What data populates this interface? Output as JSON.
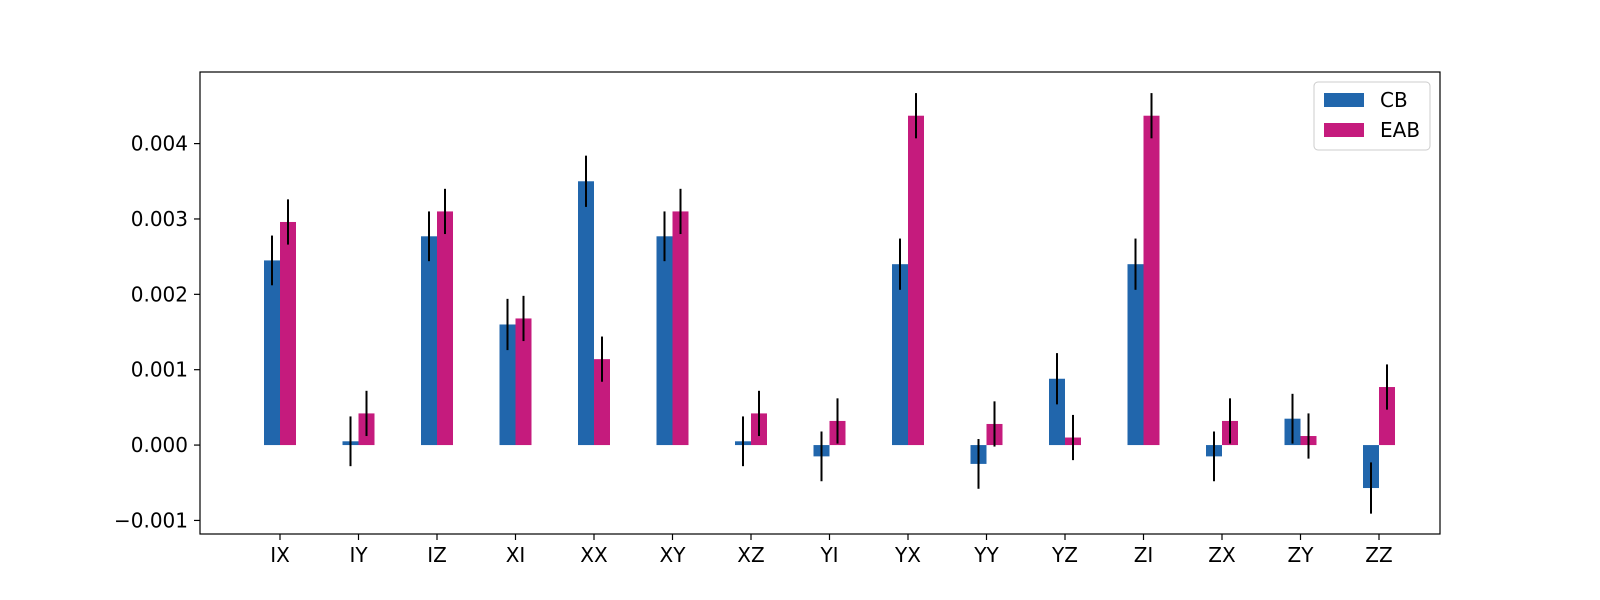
{
  "chart_data": {
    "type": "bar",
    "categories": [
      "IX",
      "IY",
      "IZ",
      "XI",
      "XX",
      "XY",
      "XZ",
      "YI",
      "YX",
      "YY",
      "YZ",
      "ZI",
      "ZX",
      "ZY",
      "ZZ"
    ],
    "series": [
      {
        "name": "CB",
        "color": "#2166ac",
        "values": [
          0.00245,
          5e-05,
          0.00277,
          0.0016,
          0.0035,
          0.00277,
          5e-05,
          -0.00015,
          0.0024,
          -0.00025,
          0.00088,
          0.0024,
          -0.00015,
          0.00035,
          -0.00057
        ],
        "errors": [
          0.00033,
          0.00033,
          0.00033,
          0.00034,
          0.00034,
          0.00033,
          0.00033,
          0.00033,
          0.00034,
          0.00033,
          0.00034,
          0.00034,
          0.00033,
          0.00033,
          0.00034
        ]
      },
      {
        "name": "EAB",
        "color": "#c51b7d",
        "values": [
          0.00296,
          0.00042,
          0.0031,
          0.00168,
          0.00114,
          0.0031,
          0.00042,
          0.00032,
          0.00437,
          0.00028,
          0.0001,
          0.00437,
          0.00032,
          0.00012,
          0.00077
        ],
        "errors": [
          0.0003,
          0.0003,
          0.0003,
          0.0003,
          0.0003,
          0.0003,
          0.0003,
          0.0003,
          0.0003,
          0.0003,
          0.0003,
          0.0003,
          0.0003,
          0.0003,
          0.0003
        ]
      }
    ],
    "yticks": [
      -0.001,
      0.0,
      0.001,
      0.002,
      0.003,
      0.004
    ],
    "ytick_labels": [
      "−0.001",
      "0.000",
      "0.001",
      "0.002",
      "0.003",
      "0.004"
    ],
    "ylim": [
      -0.00118,
      0.00495
    ],
    "legend_position": "top-right",
    "grid": false
  }
}
